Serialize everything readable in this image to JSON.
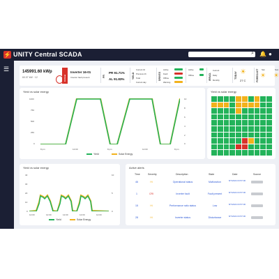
{
  "app": {
    "title": "UNITY Central SCADA",
    "logo_glyph": "⚡"
  },
  "icons": {
    "search": "search-icon",
    "bell": "bell-icon",
    "user": "user-icon",
    "menu": "menu-icon"
  },
  "summary": {
    "energy": "145991.60 kWp",
    "sub": "60.07 kW · 12",
    "status_badge": "Critical",
    "inverter": "Inverter 16-01",
    "inverter_sub": "Inverter fault present",
    "pr_label": "PR",
    "pr": "PR 91.71%",
    "al": "AL 91.83%",
    "yield_label": "YIELD",
    "yield_rows": [
      "Current 1h",
      "Previous 1h",
      "Total",
      "Current day"
    ],
    "drives_label": "DRIVES",
    "drive_rows": [
      "Active",
      "Fault",
      "Offline",
      "Warning"
    ],
    "irradiation_label": "IRRAD.",
    "irr_rows": [
      "Current",
      "Daily",
      "Monthly"
    ],
    "today_label": "TODAY",
    "temp": "27 C",
    "forecast_label": "FORECAST",
    "forecast_days": [
      "Sat",
      "Sun"
    ]
  },
  "colors": {
    "yield": "#23b35a",
    "solar": "#f2b21c",
    "critical": "#d8322a",
    "link": "#2a57d6"
  },
  "chart1": {
    "title": "Yield vs solar energy",
    "legend": [
      "Yield",
      "Solar Energy"
    ],
    "y_left_ticks": [
      "1000",
      "750",
      "500",
      "250",
      "0"
    ],
    "y_right_ticks": [
      "10",
      "8",
      "6",
      "4",
      "2",
      "0"
    ],
    "x_ticks": [
      "8 pm",
      "12:00",
      "8 pm",
      "12:00",
      "8 pm"
    ]
  },
  "chart2": {
    "title": "Yield vs solar energy",
    "legend": [
      "Yield",
      "Solar Energy"
    ],
    "y_left_ticks": [
      "40",
      "30",
      "20",
      "10",
      "0"
    ],
    "y_right_ticks": [
      "10",
      "5",
      "0"
    ],
    "x_ticks": [
      "12:00",
      "12:00",
      "12:00",
      "12:00",
      "12:00"
    ]
  },
  "heatmap": {
    "title": "Yield vs solar energy",
    "rows": 10,
    "cols": 10,
    "palette": {
      "g": "#23b35a",
      "y": "#f2b21c",
      "r": "#d8322a"
    },
    "grid": [
      "ggggyygygg",
      "yyygyyyygg",
      "ggggyggggg",
      "gggggggggg",
      "gggggggggg",
      "gggggggggg",
      "gggggggggg",
      "gggggryggg",
      "ggggrrgggg",
      "gggggggggg"
    ]
  },
  "alerts": {
    "title": "Active alerts",
    "headers": [
      "Time",
      "Severity",
      "Description",
      "State",
      "Date",
      "Source"
    ],
    "rows": [
      {
        "time": "46",
        "severity": "Hi",
        "description": "Operational status",
        "state": "Malfunction",
        "date": "8/7/2024 03:57:00",
        "sev_color": "#f2b21c"
      },
      {
        "time": "1",
        "severity": "CRI",
        "description": "Inverter fault",
        "state": "Fault present",
        "date": "8/7/2024 03:57:00",
        "sev_color": "#d8322a"
      },
      {
        "time": "15",
        "severity": "Hi",
        "description": "Performance ratio status",
        "state": "Low",
        "date": "8/7/2024 03:57:00",
        "sev_color": "#f2b21c"
      },
      {
        "time": "28",
        "severity": "Hi",
        "description": "Inverter status",
        "state": "Disturbance",
        "date": "8/7/2024 03:57:00",
        "sev_color": "#f2b21c"
      }
    ]
  }
}
